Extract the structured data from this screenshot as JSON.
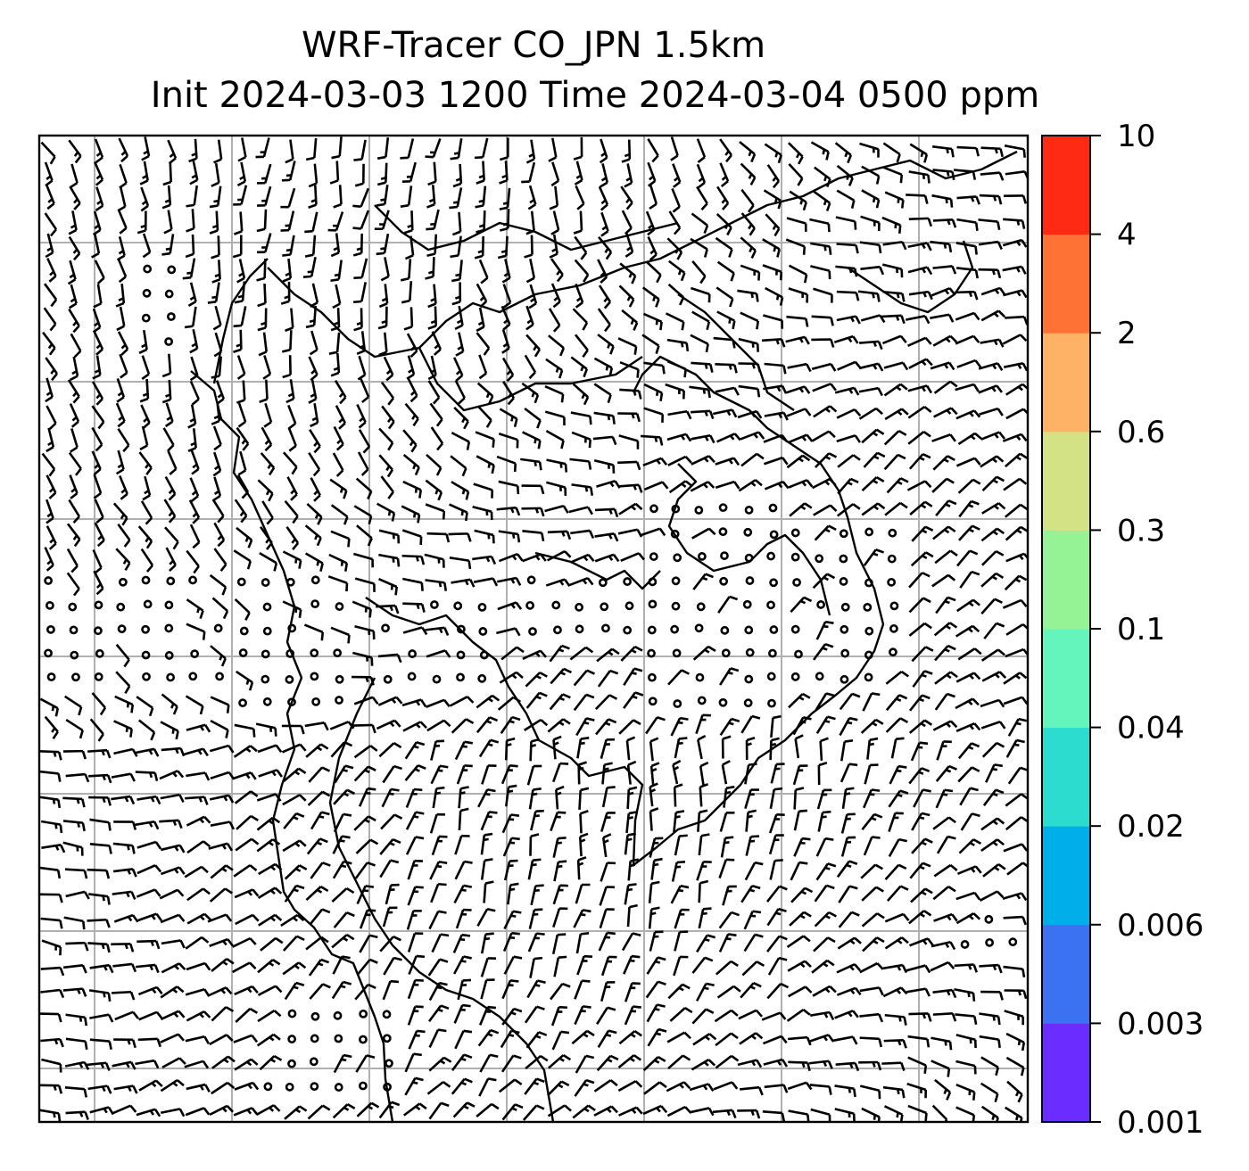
{
  "title": {
    "line1": "WRF-Tracer CO_JPN 1.5km",
    "line2": "Init 2024-03-03 1200 Time 2024-03-04 0500 ppm"
  },
  "colorbar": {
    "levels": [
      "0.001",
      "0.003",
      "0.006",
      "0.02",
      "0.04",
      "0.1",
      "0.3",
      "0.6",
      "2",
      "4",
      "10"
    ],
    "colors": [
      "#6a2cff",
      "#3a72f2",
      "#00aeea",
      "#2bdccf",
      "#64f5bc",
      "#95f396",
      "#d2e285",
      "#feb266",
      "#ff7236",
      "#ff2a14"
    ]
  },
  "map": {
    "gridlines": true,
    "barb_color": "#000000",
    "coastline_color": "#000000",
    "grid_color": "#b0b0b0"
  }
}
